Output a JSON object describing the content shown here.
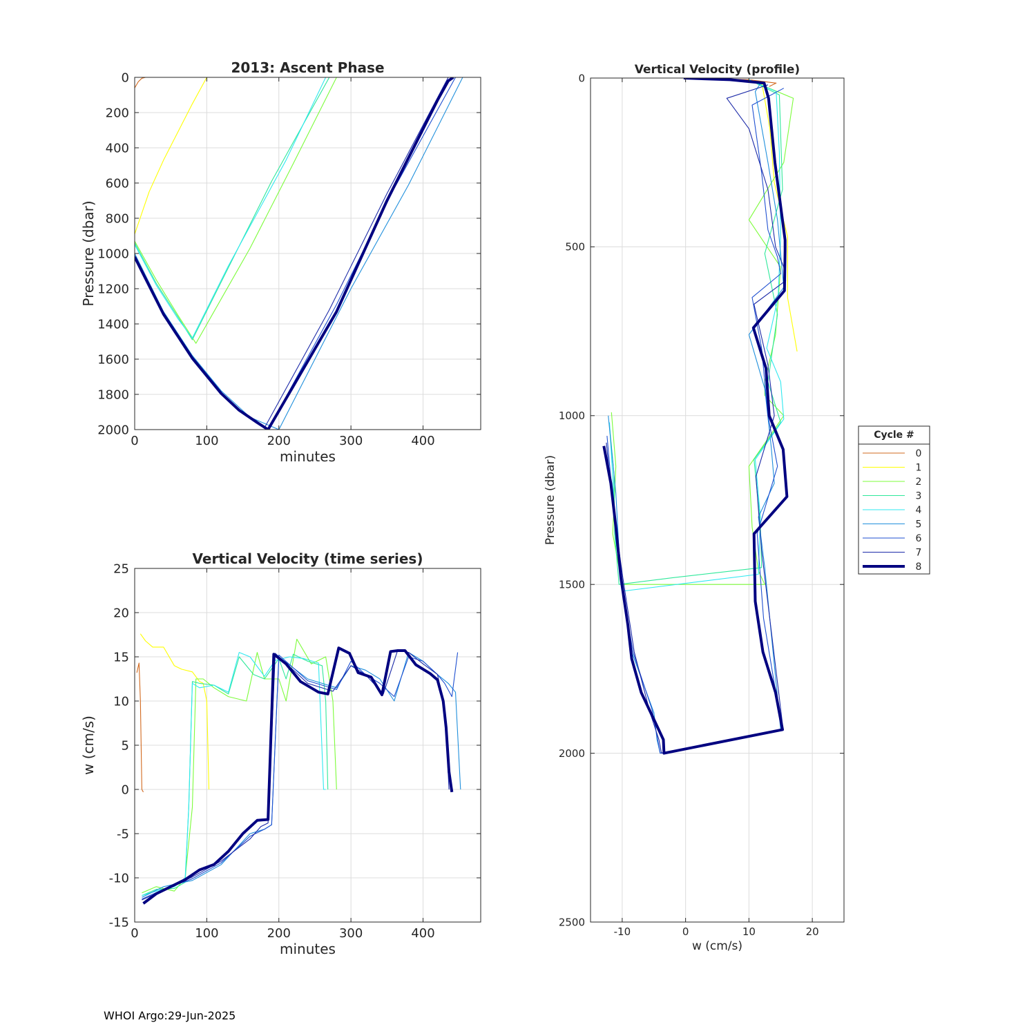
{
  "footer": "WHOI Argo:29-Jun-2025",
  "legend": {
    "title": "Cycle #",
    "entries": [
      "0",
      "1",
      "2",
      "3",
      "4",
      "5",
      "6",
      "7",
      "8"
    ]
  },
  "colors": {
    "0": "#d2691e",
    "1": "#ffff00",
    "2": "#7cfc3a",
    "3": "#2ee89a",
    "4": "#2ee8f0",
    "5": "#1f8fdc",
    "6": "#1e4fd0",
    "7": "#1c2aa8",
    "8": "#000080",
    "grid": "#dcdcdc",
    "axis": "#262626"
  },
  "chart_data": [
    {
      "id": "ascent",
      "type": "line",
      "title": "2013: Ascent Phase",
      "xlabel": "minutes",
      "ylabel": "Pressure (dbar)",
      "xlim": [
        0,
        480
      ],
      "ylim": [
        2000,
        0
      ],
      "y_reversed": true,
      "grid": true,
      "xticks": [
        0,
        100,
        200,
        300,
        400
      ],
      "yticks": [
        0,
        200,
        400,
        600,
        800,
        1000,
        1200,
        1400,
        1600,
        1800,
        2000
      ],
      "series": [
        {
          "name": "0",
          "x": [
            0,
            5,
            10,
            15
          ],
          "y": [
            60,
            25,
            5,
            0
          ]
        },
        {
          "name": "1",
          "x": [
            0,
            20,
            40,
            60,
            80,
            100
          ],
          "y": [
            890,
            650,
            470,
            310,
            150,
            0
          ]
        },
        {
          "name": "2",
          "x": [
            0,
            30,
            60,
            85,
            110,
            160,
            220,
            280
          ],
          "y": [
            930,
            1150,
            1350,
            1510,
            1330,
            970,
            490,
            0
          ]
        },
        {
          "name": "3",
          "x": [
            0,
            30,
            60,
            80,
            130,
            190,
            270
          ],
          "y": [
            940,
            1170,
            1360,
            1490,
            1080,
            590,
            0
          ]
        },
        {
          "name": "4",
          "x": [
            0,
            30,
            60,
            80,
            130,
            210,
            265
          ],
          "y": [
            950,
            1180,
            1370,
            1480,
            1070,
            470,
            0
          ]
        },
        {
          "name": "5",
          "x": [
            0,
            40,
            80,
            120,
            160,
            200,
            300,
            380,
            455
          ],
          "y": [
            1000,
            1330,
            1580,
            1780,
            1930,
            2000,
            1200,
            610,
            0
          ]
        },
        {
          "name": "6",
          "x": [
            0,
            40,
            80,
            120,
            150,
            185,
            280,
            360,
            445
          ],
          "y": [
            1010,
            1340,
            1590,
            1790,
            1910,
            2000,
            1290,
            630,
            0
          ]
        },
        {
          "name": "7",
          "x": [
            0,
            40,
            80,
            120,
            150,
            180,
            270,
            350,
            435
          ],
          "y": [
            1015,
            1345,
            1595,
            1795,
            1910,
            1990,
            1320,
            660,
            0
          ]
        },
        {
          "name": "8",
          "x": [
            0,
            40,
            80,
            120,
            145,
            170,
            185,
            280,
            350,
            420,
            435,
            442
          ],
          "y": [
            1020,
            1345,
            1595,
            1795,
            1890,
            1960,
            2000,
            1330,
            700,
            130,
            20,
            0
          ]
        }
      ]
    },
    {
      "id": "vv_time",
      "type": "line",
      "title": "Vertical Velocity (time series)",
      "xlabel": "minutes",
      "ylabel": "w (cm/s)",
      "xlim": [
        0,
        480
      ],
      "ylim": [
        -15,
        25
      ],
      "grid": true,
      "xticks": [
        0,
        100,
        200,
        300,
        400
      ],
      "yticks": [
        -15,
        -10,
        -5,
        0,
        5,
        10,
        15,
        20,
        25
      ],
      "series": [
        {
          "name": "0",
          "x": [
            3,
            6,
            8,
            10,
            12
          ],
          "y": [
            13.2,
            14.3,
            10,
            0,
            -0.3
          ]
        },
        {
          "name": "1",
          "x": [
            8,
            15,
            25,
            40,
            55,
            65,
            80,
            90,
            95,
            100,
            103
          ],
          "y": [
            17.6,
            16.8,
            16.1,
            16.1,
            14.0,
            13.6,
            13.3,
            12.2,
            12.0,
            10,
            0
          ]
        },
        {
          "name": "2",
          "x": [
            10,
            30,
            55,
            70,
            80,
            85,
            95,
            110,
            130,
            155,
            170,
            180,
            200,
            210,
            225,
            245,
            265,
            275,
            280
          ],
          "y": [
            -11.7,
            -11.0,
            -11.5,
            -10,
            -2,
            12.5,
            12.5,
            11.5,
            10.5,
            10.0,
            15.5,
            12.5,
            12.5,
            10,
            17.0,
            14.2,
            15.0,
            10.0,
            0
          ]
        },
        {
          "name": "3",
          "x": [
            10,
            30,
            55,
            70,
            75,
            80,
            90,
            110,
            130,
            145,
            165,
            180,
            200,
            210,
            220,
            240,
            260,
            265,
            268
          ],
          "y": [
            -12.0,
            -11.3,
            -11.2,
            -10.5,
            -2,
            12.2,
            12.0,
            11.8,
            10.8,
            15.0,
            13.0,
            12.5,
            14.8,
            12.5,
            15.3,
            14.5,
            14.0,
            10.0,
            0
          ]
        },
        {
          "name": "4",
          "x": [
            10,
            30,
            55,
            70,
            75,
            80,
            90,
            110,
            130,
            145,
            160,
            180,
            195,
            215,
            235,
            255,
            262,
            265
          ],
          "y": [
            -12.0,
            -11.5,
            -11.0,
            -10,
            -2,
            12.0,
            11.5,
            11.8,
            11.0,
            15.5,
            15.0,
            12.8,
            14.6,
            15.0,
            14.8,
            14.3,
            0,
            0
          ]
        },
        {
          "name": "5",
          "x": [
            10,
            40,
            80,
            120,
            160,
            180,
            190,
            200,
            240,
            280,
            300,
            320,
            340,
            360,
            380,
            400,
            420,
            435,
            445,
            452
          ],
          "y": [
            -12.2,
            -11.0,
            -10.3,
            -8.5,
            -5.0,
            -4.5,
            -4.0,
            15.0,
            12.5,
            11.5,
            14.0,
            13.5,
            12.5,
            10.0,
            15.5,
            14.5,
            13.0,
            12.0,
            11.0,
            0
          ]
        },
        {
          "name": "6",
          "x": [
            10,
            40,
            80,
            120,
            160,
            180,
            190,
            200,
            240,
            280,
            300,
            320,
            340,
            360,
            380,
            400,
            420,
            430,
            440,
            448
          ],
          "y": [
            -12.4,
            -11.3,
            -10.1,
            -8.3,
            -5.3,
            -4.5,
            -4.0,
            15.2,
            12.3,
            11.3,
            14.5,
            13.0,
            12.0,
            10.5,
            15.0,
            14.5,
            13.0,
            12.0,
            10.5,
            15.5
          ]
        },
        {
          "name": "7",
          "x": [
            10,
            40,
            80,
            120,
            160,
            175,
            185,
            195,
            240,
            275,
            300,
            320,
            345,
            365,
            380,
            400,
            420,
            428,
            432,
            436
          ],
          "y": [
            -12.5,
            -11.4,
            -9.9,
            -8.1,
            -5.6,
            -4.2,
            -3.8,
            15.4,
            12.0,
            11.1,
            14.0,
            13.0,
            10.8,
            15.8,
            15.5,
            14.2,
            13.0,
            10.0,
            6.5,
            0
          ]
        },
        {
          "name": "8",
          "x": [
            12,
            30,
            50,
            70,
            90,
            110,
            130,
            150,
            170,
            185,
            193,
            210,
            230,
            255,
            268,
            283,
            298,
            310,
            328,
            343,
            355,
            365,
            375,
            390,
            410,
            420,
            428,
            432,
            436,
            440
          ],
          "y": [
            -12.9,
            -11.8,
            -11.0,
            -10.2,
            -9.1,
            -8.5,
            -7.0,
            -5.0,
            -3.5,
            -3.4,
            15.3,
            14.2,
            12.2,
            11.0,
            10.8,
            16.0,
            15.4,
            13.2,
            12.7,
            10.7,
            15.6,
            15.7,
            15.7,
            14.1,
            13.1,
            12.4,
            10.0,
            7.0,
            2.0,
            -0.3
          ]
        }
      ]
    },
    {
      "id": "vv_profile",
      "type": "line",
      "title": "Vertical Velocity (profile)",
      "xlabel": "w (cm/s)",
      "ylabel": "Pressure (dbar)",
      "xlim": [
        -15,
        25
      ],
      "ylim": [
        2500,
        0
      ],
      "y_reversed": true,
      "grid": true,
      "xticks": [
        -10,
        0,
        10,
        20
      ],
      "yticks": [
        0,
        500,
        1000,
        1500,
        2000,
        2500
      ],
      "series": [
        {
          "name": "0",
          "x": [
            0,
            10,
            14.3,
            13.2
          ],
          "y": [
            0,
            5,
            15,
            25
          ]
        },
        {
          "name": "1",
          "x": [
            12,
            13.3,
            14.0,
            16.1,
            16.1,
            17.6
          ],
          "y": [
            10,
            150,
            310,
            470,
            650,
            810
          ]
        },
        {
          "name": "2",
          "x": [
            10,
            17.0,
            15.5,
            10.0,
            15.0,
            14.2,
            12.5,
            12.5,
            15.5,
            10.0,
            10.5,
            11.5,
            12.5,
            -10,
            -11.5,
            -11.0,
            -11.7
          ],
          "y": [
            5,
            60,
            250,
            420,
            560,
            760,
            900,
            940,
            1000,
            1150,
            1330,
            1460,
            1500,
            1500,
            1350,
            1150,
            990
          ]
        },
        {
          "name": "3",
          "x": [
            10,
            14.8,
            15.3,
            12.5,
            14.5,
            13.0,
            15.0,
            10.8,
            11.8,
            12.0,
            -2,
            -10.5,
            -11.2,
            -11.3,
            -12.0
          ],
          "y": [
            5,
            50,
            330,
            520,
            700,
            900,
            1020,
            1130,
            1320,
            1450,
            1480,
            1500,
            1350,
            1170,
            1030
          ]
        },
        {
          "name": "4",
          "x": [
            10,
            14.3,
            14.8,
            15.0,
            14.6,
            12.8,
            15.0,
            15.5,
            11.0,
            11.8,
            11.5,
            -10,
            -11.0,
            -11.5,
            -12.0
          ],
          "y": [
            5,
            40,
            220,
            470,
            650,
            800,
            900,
            1010,
            1130,
            1300,
            1470,
            1520,
            1370,
            1180,
            1020
          ]
        },
        {
          "name": "5",
          "x": [
            12,
            11.0,
            13.0,
            14.5,
            15.5,
            10.0,
            12.5,
            13.5,
            14.0,
            11.5,
            12.5,
            15.0,
            -4.0,
            -4.5,
            -5.0,
            -8.5,
            -10.3,
            -11.0,
            -12.2
          ],
          "y": [
            10,
            40,
            250,
            420,
            620,
            760,
            920,
            1090,
            1200,
            1300,
            1450,
            1930,
            2000,
            1960,
            1880,
            1700,
            1470,
            1230,
            1000
          ]
        },
        {
          "name": "6",
          "x": [
            15.5,
            10.5,
            12.0,
            13.0,
            14.5,
            15.0,
            10.5,
            12.0,
            13.0,
            14.5,
            11.3,
            12.3,
            15.2,
            -4.0,
            -4.5,
            -5.3,
            -8.3,
            -10.1,
            -11.3,
            -12.4
          ],
          "y": [
            30,
            80,
            280,
            450,
            530,
            580,
            650,
            800,
            1000,
            1150,
            1350,
            1600,
            1930,
            2000,
            1950,
            1870,
            1700,
            1500,
            1290,
            1060
          ]
        },
        {
          "name": "7",
          "x": [
            13.0,
            6.5,
            10.0,
            13.0,
            14.2,
            15.5,
            15.8,
            10.8,
            13.0,
            14.0,
            11.1,
            12.0,
            15.4,
            -3.8,
            -4.2,
            -5.6,
            -8.1,
            -9.9,
            -11.4,
            -12.5
          ],
          "y": [
            20,
            60,
            150,
            330,
            500,
            560,
            600,
            670,
            850,
            1000,
            1180,
            1400,
            1930,
            2000,
            1960,
            1880,
            1700,
            1480,
            1280,
            1080
          ]
        },
        {
          "name": "8",
          "x": [
            -0.3,
            7.0,
            12.4,
            13.1,
            14.1,
            15.7,
            15.7,
            15.6,
            10.7,
            12.7,
            13.2,
            15.4,
            16.0,
            10.8,
            11.0,
            12.2,
            14.2,
            15.3,
            -3.4,
            -3.5,
            -5.0,
            -7.0,
            -8.5,
            -9.1,
            -10.2,
            -11.0,
            -11.8,
            -12.9
          ],
          "y": [
            0,
            5,
            15,
            60,
            250,
            480,
            510,
            630,
            740,
            860,
            1000,
            1100,
            1240,
            1350,
            1550,
            1700,
            1820,
            1930,
            2000,
            1960,
            1900,
            1820,
            1720,
            1620,
            1480,
            1330,
            1200,
            1090
          ]
        }
      ]
    }
  ]
}
